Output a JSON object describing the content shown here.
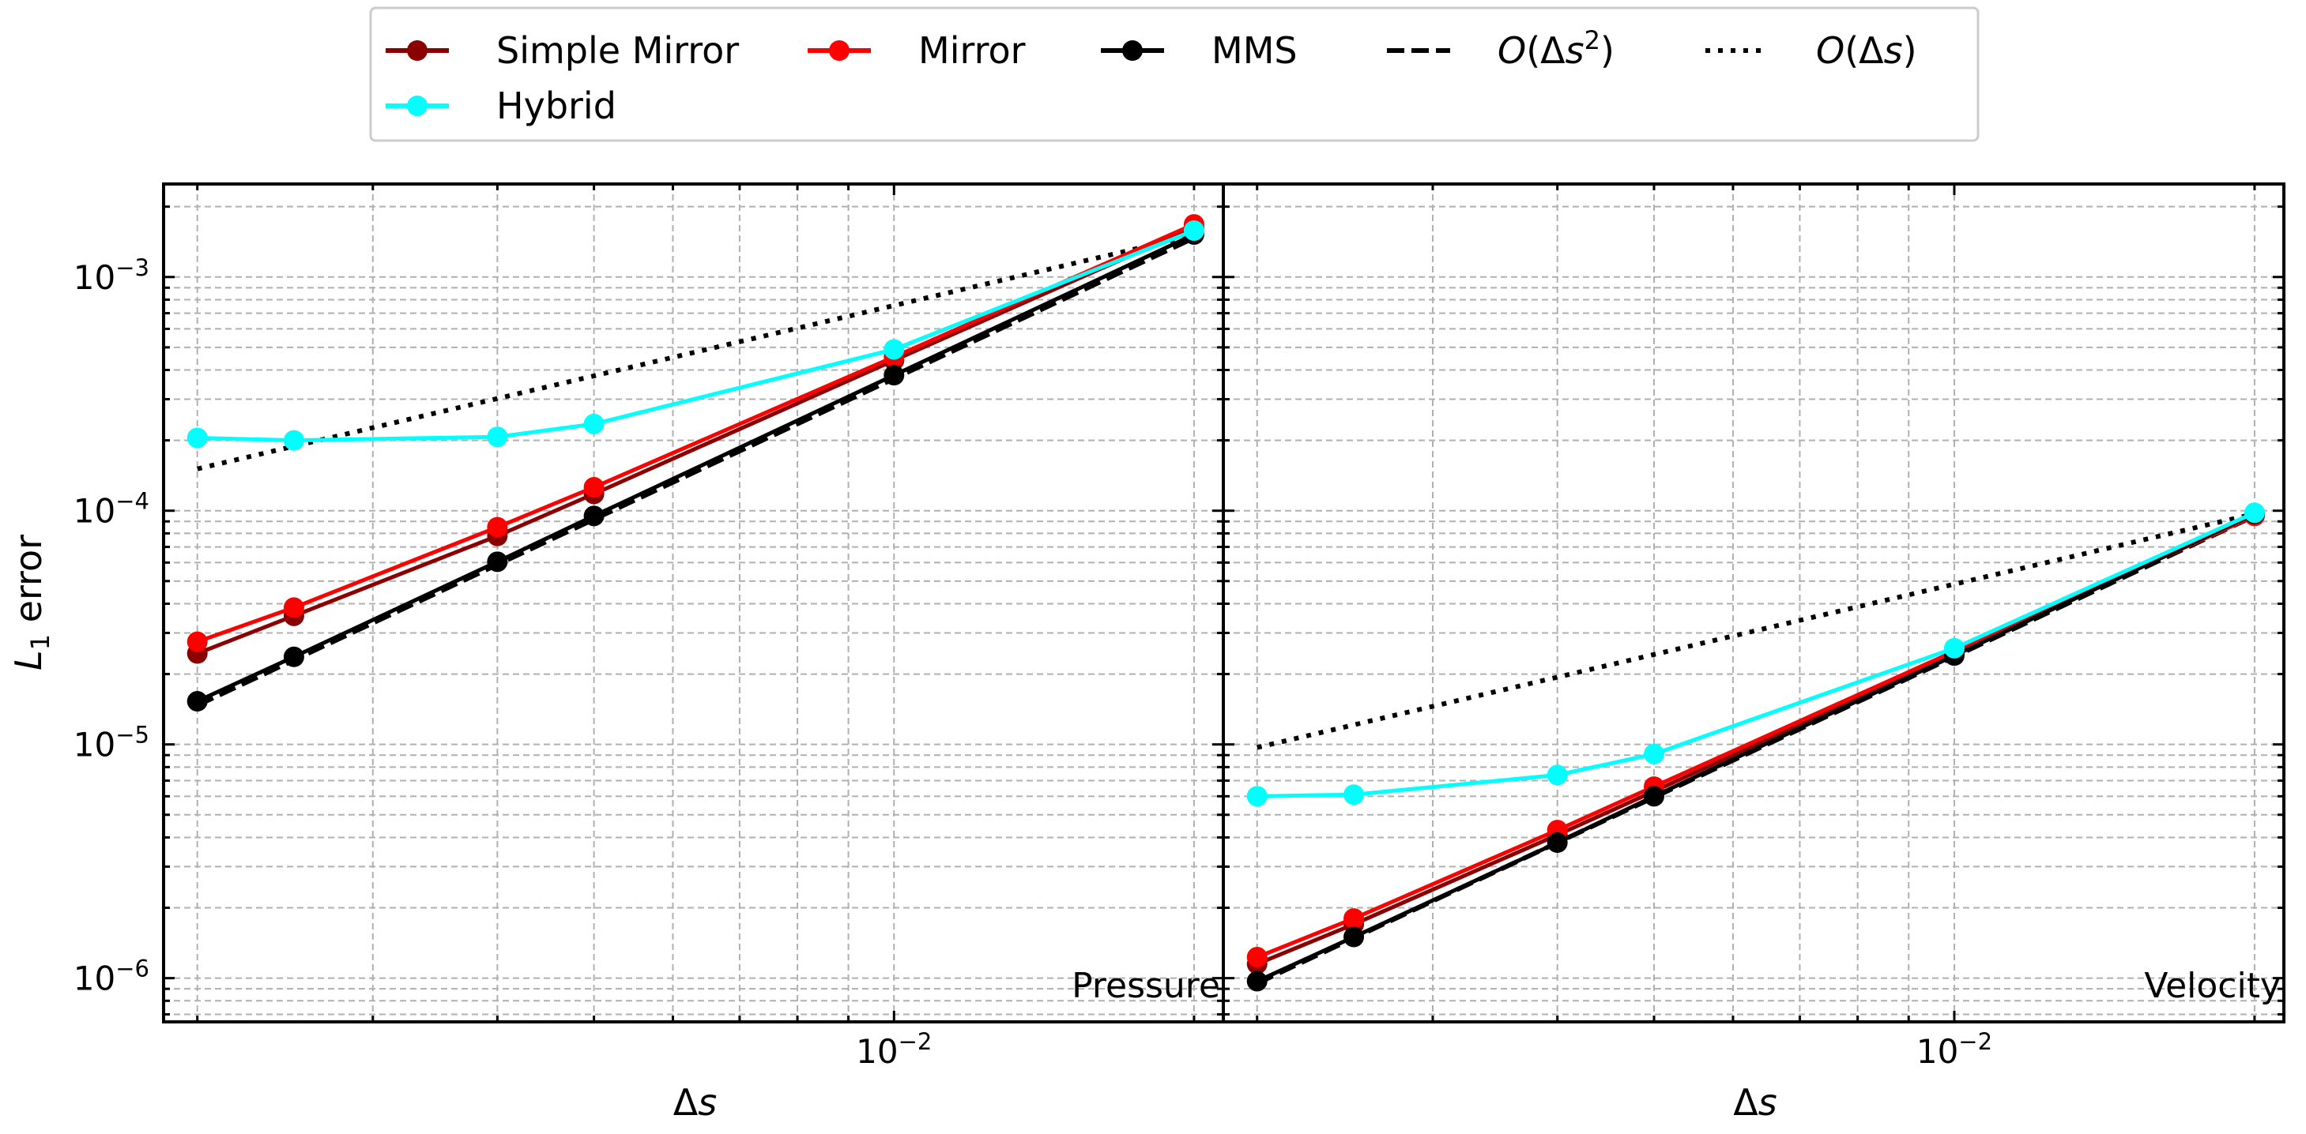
{
  "chart_data": {
    "type": "line",
    "scale": {
      "x": "log",
      "y": "log"
    },
    "xlim": [
      0.00185,
      0.0214
    ],
    "ylim": [
      6.5e-07,
      0.0025
    ],
    "grid": true,
    "legend_position": "top-center",
    "legend": [
      {
        "label": "Simple Mirror",
        "color": "#8b0000",
        "style": "solid-marker"
      },
      {
        "label": "Mirror",
        "color": "#ff0000",
        "style": "solid-marker"
      },
      {
        "label": "MMS",
        "color": "#000000",
        "style": "solid-marker"
      },
      {
        "label_main": "O(Δs",
        "label_sup": "2",
        "label_end": ")",
        "color": "#000000",
        "style": "dashed"
      },
      {
        "label_main": "O(Δs",
        "label_sup": "",
        "label_end": ")",
        "color": "#000000",
        "style": "dotted"
      },
      {
        "label": "Hybrid",
        "color": "#00ffff",
        "style": "solid-marker"
      }
    ],
    "shared": {
      "y_ticks": [
        {
          "value": 0.001,
          "base": "10",
          "exp": "−3"
        },
        {
          "value": 0.0001,
          "base": "10",
          "exp": "−4"
        },
        {
          "value": 1e-05,
          "base": "10",
          "exp": "−5"
        },
        {
          "value": 1e-06,
          "base": "10",
          "exp": "−6"
        }
      ],
      "x_ticks": [
        {
          "value": 0.01,
          "base": "10",
          "exp": "−2"
        }
      ],
      "xlabel_main": "Δs",
      "ylabel_main": "L",
      "ylabel_sub": "1",
      "ylabel_end": " error"
    },
    "panels": [
      {
        "label": "Pressure",
        "series": [
          {
            "name": "Simple Mirror",
            "color": "#8b0000",
            "x": [
              0.002,
              0.0025,
              0.004,
              0.005,
              0.01,
              0.02
            ],
            "y": [
              2.45e-05,
              3.55e-05,
              7.8e-05,
              0.000118,
              0.00044,
              0.00163
            ]
          },
          {
            "name": "Mirror",
            "color": "#ff0000",
            "x": [
              0.002,
              0.0025,
              0.004,
              0.005,
              0.01,
              0.02
            ],
            "y": [
              2.75e-05,
              3.85e-05,
              8.5e-05,
              0.000126,
              0.000455,
              0.00168
            ]
          },
          {
            "name": "MMS",
            "color": "#000000",
            "x": [
              0.002,
              0.0025,
              0.004,
              0.005,
              0.01,
              0.02
            ],
            "y": [
              1.53e-05,
              2.37e-05,
              6.05e-05,
              9.5e-05,
              0.00038,
              0.00152
            ]
          },
          {
            "name": "Hybrid",
            "color": "#00ffff",
            "x": [
              0.002,
              0.0025,
              0.004,
              0.005,
              0.01,
              0.02
            ],
            "y": [
              0.000205,
              0.0002,
              0.000207,
              0.000235,
              0.00049,
              0.00158
            ]
          }
        ],
        "reference_lines": [
          {
            "order": 2,
            "style": "dashed",
            "x": [
              0.002,
              0.02
            ],
            "y": [
              1.47e-05,
              0.00147
            ]
          },
          {
            "order": 1,
            "style": "dotted",
            "x": [
              0.002,
              0.02
            ],
            "y": [
              0.000151,
              0.00151
            ]
          }
        ]
      },
      {
        "label": "Velocity",
        "series": [
          {
            "name": "Simple Mirror",
            "color": "#8b0000",
            "x": [
              0.002,
              0.0025,
              0.004,
              0.005,
              0.01,
              0.02
            ],
            "y": [
              1.15e-06,
              1.7e-06,
              4.1e-06,
              6.3e-06,
              2.45e-05,
              9.7e-05
            ]
          },
          {
            "name": "Mirror",
            "color": "#ff0000",
            "x": [
              0.002,
              0.0025,
              0.004,
              0.005,
              0.01,
              0.02
            ],
            "y": [
              1.23e-06,
              1.8e-06,
              4.3e-06,
              6.6e-06,
              2.5e-05,
              9.5e-05
            ]
          },
          {
            "name": "MMS",
            "color": "#000000",
            "x": [
              0.002,
              0.0025,
              0.004,
              0.005,
              0.01,
              0.02
            ],
            "y": [
              9.7e-07,
              1.5e-06,
              3.8e-06,
              6e-06,
              2.4e-05,
              9.7e-05
            ]
          },
          {
            "name": "Hybrid",
            "color": "#00ffff",
            "x": [
              0.002,
              0.0025,
              0.004,
              0.005,
              0.01,
              0.02
            ],
            "y": [
              6e-06,
              6.1e-06,
              7.4e-06,
              9.1e-06,
              2.58e-05,
              9.8e-05
            ]
          }
        ],
        "reference_lines": [
          {
            "order": 2,
            "style": "dashed",
            "x": [
              0.002,
              0.02
            ],
            "y": [
              9.5e-07,
              9.5e-05
            ]
          },
          {
            "order": 1,
            "style": "dotted",
            "x": [
              0.002,
              0.02
            ],
            "y": [
              9.7e-06,
              9.7e-05
            ]
          }
        ]
      }
    ]
  }
}
